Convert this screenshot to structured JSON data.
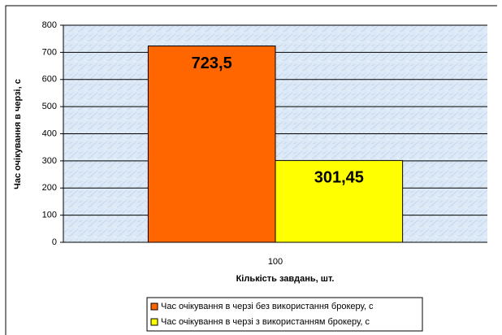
{
  "chart_data": {
    "type": "bar",
    "categories": [
      "100"
    ],
    "series": [
      {
        "name": "Час очікування в черзі без використання брокеру, с",
        "color": "#ff6600",
        "values": [
          723.5
        ],
        "value_labels": [
          "723,5"
        ]
      },
      {
        "name": "Час очікування в черзі з використанням брокеру, с",
        "color": "#ffff00",
        "values": [
          301.45
        ],
        "value_labels": [
          "301,45"
        ]
      }
    ],
    "xlabel": "Кількість завдань, шт.",
    "ylabel": "Час очікування в черзі, с",
    "ylim": [
      0,
      800
    ],
    "yticks": [
      0,
      100,
      200,
      300,
      400,
      500,
      600,
      700,
      800
    ],
    "grid": true,
    "legend": "bottom"
  }
}
